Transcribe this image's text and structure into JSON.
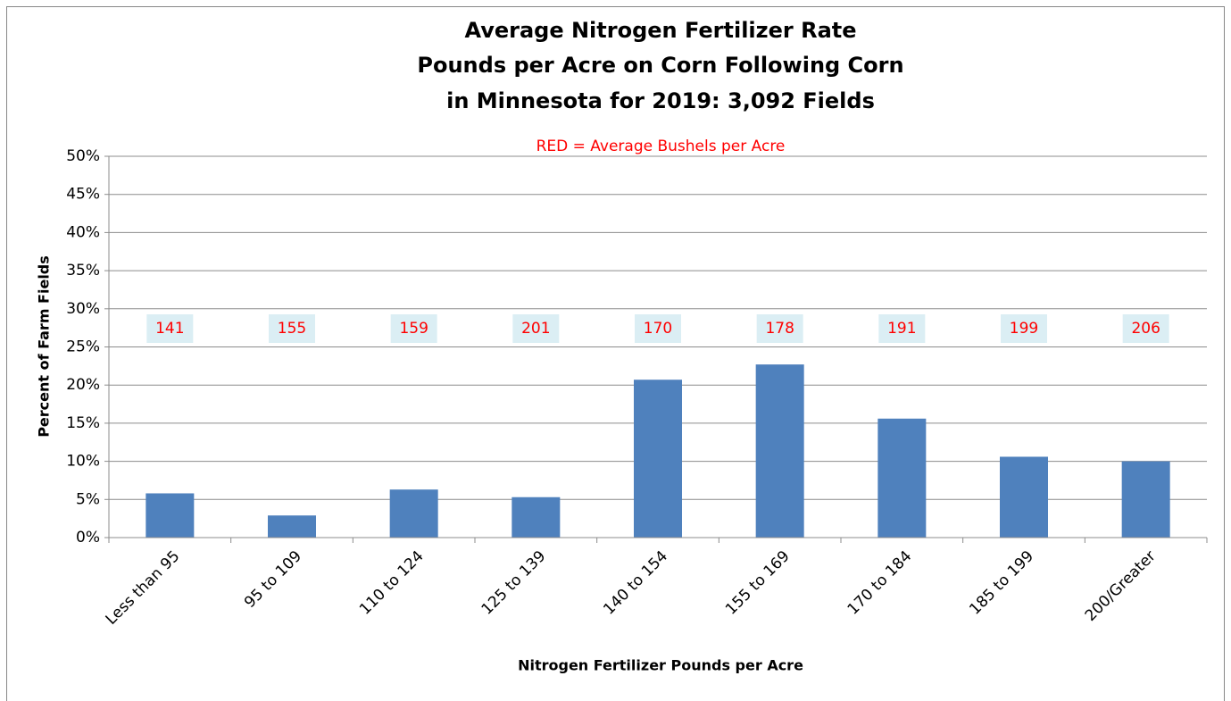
{
  "chart_data": {
    "type": "bar",
    "title": [
      "Average Nitrogen Fertilizer Rate",
      "Pounds per Acre on Corn Following Corn",
      "in Minnesota for 2019: 3,092 Fields"
    ],
    "subtitle": "RED = Average Bushels per Acre",
    "x_label": "Nitrogen Fertilizer Pounds per Acre",
    "y_label": "Percent of Farm Fields",
    "categories": [
      "Less than 95",
      "95 to 109",
      "110 to 124",
      "125 to 139",
      "140 to 154",
      "155 to 169",
      "170 to 184",
      "185 to 199",
      "200/Greater"
    ],
    "values": [
      5.8,
      2.9,
      6.3,
      5.3,
      20.7,
      22.7,
      15.6,
      10.6,
      10.0
    ],
    "yield_labels": [
      141,
      155,
      159,
      201,
      170,
      178,
      191,
      199,
      206
    ],
    "color": "#4f81bd",
    "ylim": [
      0,
      50
    ],
    "yticks": [
      {
        "value": 0,
        "label": "0%"
      },
      {
        "value": 5,
        "label": "5%"
      },
      {
        "value": 10,
        "label": "10%"
      },
      {
        "value": 15,
        "label": "15%"
      },
      {
        "value": 20,
        "label": "20%"
      },
      {
        "value": 25,
        "label": "25%"
      },
      {
        "value": 30,
        "label": "30%"
      },
      {
        "value": 35,
        "label": "35%"
      },
      {
        "value": 40,
        "label": "40%"
      },
      {
        "value": 45,
        "label": "45%"
      },
      {
        "value": 50,
        "label": "50%"
      }
    ],
    "grid": true
  }
}
